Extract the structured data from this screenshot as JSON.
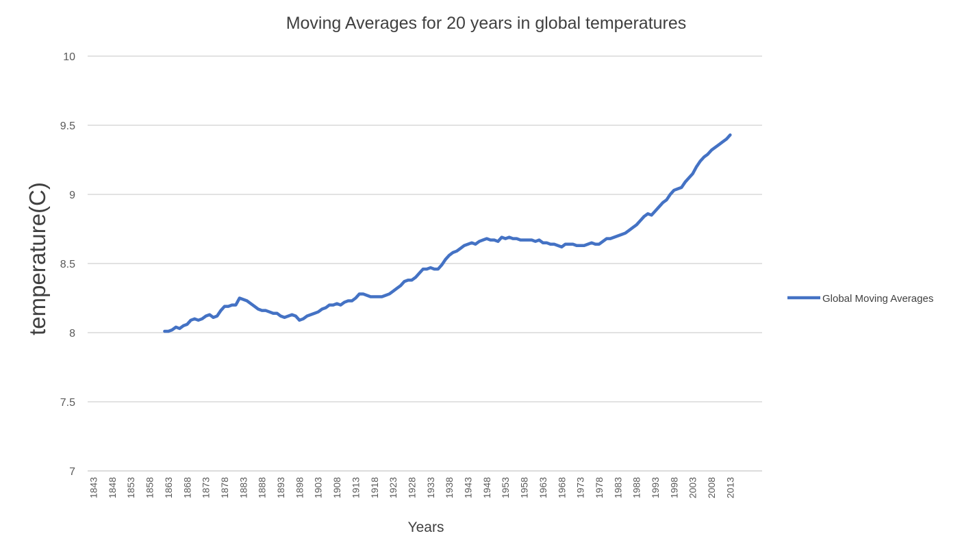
{
  "chart_data": {
    "type": "line",
    "title": "Moving Averages for 20 years in global temperatures",
    "xlabel": "Years",
    "ylabel": "temperature(C)",
    "xlim": [
      1843,
      2016
    ],
    "ylim": [
      7,
      10
    ],
    "yticks": [
      "10",
      "9.5",
      "9",
      "8.5",
      "8",
      "7.5",
      "7"
    ],
    "ytick_values": [
      10,
      9.5,
      9,
      8.5,
      8,
      7.5,
      7
    ],
    "xticks": [
      "1843",
      "1848",
      "1853",
      "1858",
      "1863",
      "1868",
      "1873",
      "1878",
      "1883",
      "1888",
      "1893",
      "1898",
      "1903",
      "1908",
      "1913",
      "1918",
      "1923",
      "1928",
      "1933",
      "1938",
      "1943",
      "1948",
      "1953",
      "1958",
      "1963",
      "1968",
      "1973",
      "1978",
      "1983",
      "1988",
      "1993",
      "1998",
      "2003",
      "2008",
      "2013"
    ],
    "grid": "horizontal",
    "legend_position": "right",
    "series": [
      {
        "name": "Global Moving Averages",
        "color": "#4472C4",
        "x": [
          1862,
          1863,
          1864,
          1865,
          1866,
          1867,
          1868,
          1869,
          1870,
          1871,
          1872,
          1873,
          1874,
          1875,
          1876,
          1877,
          1878,
          1879,
          1880,
          1881,
          1882,
          1883,
          1884,
          1885,
          1886,
          1887,
          1888,
          1889,
          1890,
          1891,
          1892,
          1893,
          1894,
          1895,
          1896,
          1897,
          1898,
          1899,
          1900,
          1901,
          1902,
          1903,
          1904,
          1905,
          1906,
          1907,
          1908,
          1909,
          1910,
          1911,
          1912,
          1913,
          1914,
          1915,
          1916,
          1917,
          1918,
          1919,
          1920,
          1921,
          1922,
          1923,
          1924,
          1925,
          1926,
          1927,
          1928,
          1929,
          1930,
          1931,
          1932,
          1933,
          1934,
          1935,
          1936,
          1937,
          1938,
          1939,
          1940,
          1941,
          1942,
          1943,
          1944,
          1945,
          1946,
          1947,
          1948,
          1949,
          1950,
          1951,
          1952,
          1953,
          1954,
          1955,
          1956,
          1957,
          1958,
          1959,
          1960,
          1961,
          1962,
          1963,
          1964,
          1965,
          1966,
          1967,
          1968,
          1969,
          1970,
          1971,
          1972,
          1973,
          1974,
          1975,
          1976,
          1977,
          1978,
          1979,
          1980,
          1981,
          1982,
          1983,
          1984,
          1985,
          1986,
          1987,
          1988,
          1989,
          1990,
          1991,
          1992,
          1993,
          1994,
          1995,
          1996,
          1997,
          1998,
          1999,
          2000,
          2001,
          2002,
          2003,
          2004,
          2005,
          2006,
          2007,
          2008,
          2009,
          2010,
          2011,
          2012,
          2013
        ],
        "values": [
          8.01,
          8.01,
          8.02,
          8.04,
          8.03,
          8.05,
          8.06,
          8.09,
          8.1,
          8.09,
          8.1,
          8.12,
          8.13,
          8.11,
          8.12,
          8.16,
          8.19,
          8.19,
          8.2,
          8.2,
          8.25,
          8.24,
          8.23,
          8.21,
          8.19,
          8.17,
          8.16,
          8.16,
          8.15,
          8.14,
          8.14,
          8.12,
          8.11,
          8.12,
          8.13,
          8.12,
          8.09,
          8.1,
          8.12,
          8.13,
          8.14,
          8.15,
          8.17,
          8.18,
          8.2,
          8.2,
          8.21,
          8.2,
          8.22,
          8.23,
          8.23,
          8.25,
          8.28,
          8.28,
          8.27,
          8.26,
          8.26,
          8.26,
          8.26,
          8.27,
          8.28,
          8.3,
          8.32,
          8.34,
          8.37,
          8.38,
          8.38,
          8.4,
          8.43,
          8.46,
          8.46,
          8.47,
          8.46,
          8.46,
          8.49,
          8.53,
          8.56,
          8.58,
          8.59,
          8.61,
          8.63,
          8.64,
          8.65,
          8.64,
          8.66,
          8.67,
          8.68,
          8.67,
          8.67,
          8.66,
          8.69,
          8.68,
          8.69,
          8.68,
          8.68,
          8.67,
          8.67,
          8.67,
          8.67,
          8.66,
          8.67,
          8.65,
          8.65,
          8.64,
          8.64,
          8.63,
          8.62,
          8.64,
          8.64,
          8.64,
          8.63,
          8.63,
          8.63,
          8.64,
          8.65,
          8.64,
          8.64,
          8.66,
          8.68,
          8.68,
          8.69,
          8.7,
          8.71,
          8.72,
          8.74,
          8.76,
          8.78,
          8.81,
          8.84,
          8.86,
          8.85,
          8.88,
          8.91,
          8.94,
          8.96,
          9.0,
          9.03,
          9.04,
          9.05,
          9.09,
          9.12,
          9.15,
          9.2,
          9.24,
          9.27,
          9.29,
          9.32,
          9.34,
          9.36,
          9.38,
          9.4,
          9.43
        ]
      }
    ]
  }
}
